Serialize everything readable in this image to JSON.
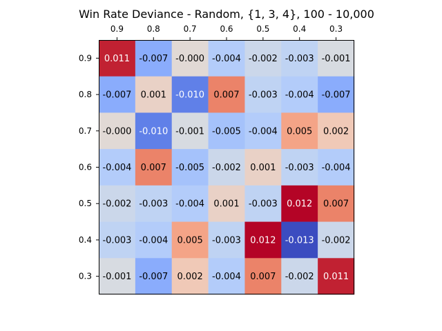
{
  "chart_data": {
    "type": "heatmap",
    "title": "Win Rate Deviance - Random, {1, 3, 4}, 100 - 10,000",
    "x_categories": [
      "0.9",
      "0.8",
      "0.7",
      "0.6",
      "0.5",
      "0.4",
      "0.3"
    ],
    "y_categories": [
      "0.9",
      "0.8",
      "0.7",
      "0.6",
      "0.5",
      "0.4",
      "0.3"
    ],
    "x_axis_position": "top",
    "colormap": "coolwarm",
    "color_range": [
      -0.013,
      0.012
    ],
    "grid": false,
    "legend": "none",
    "values": [
      [
        0.011,
        -0.007,
        -0.0,
        -0.004,
        -0.002,
        -0.003,
        -0.001
      ],
      [
        -0.007,
        0.001,
        -0.01,
        0.007,
        -0.003,
        -0.004,
        -0.007
      ],
      [
        -0.0,
        -0.01,
        -0.001,
        -0.005,
        -0.004,
        0.005,
        0.002
      ],
      [
        -0.004,
        0.007,
        -0.005,
        -0.002,
        0.001,
        -0.003,
        -0.004
      ],
      [
        -0.002,
        -0.003,
        -0.004,
        0.001,
        -0.003,
        0.012,
        0.007
      ],
      [
        -0.003,
        -0.004,
        0.005,
        -0.003,
        0.012,
        -0.013,
        -0.002
      ],
      [
        -0.001,
        -0.007,
        0.002,
        -0.004,
        0.007,
        -0.002,
        0.011
      ]
    ],
    "labels": [
      [
        "0.011",
        "-0.007",
        "-0.000",
        "-0.004",
        "-0.002",
        "-0.003",
        "-0.001"
      ],
      [
        "-0.007",
        "0.001",
        "-0.010",
        "0.007",
        "-0.003",
        "-0.004",
        "-0.007"
      ],
      [
        "-0.000",
        "-0.010",
        "-0.001",
        "-0.005",
        "-0.004",
        "0.005",
        "0.002"
      ],
      [
        "-0.004",
        "0.007",
        "-0.005",
        "-0.002",
        "0.001",
        "-0.003",
        "-0.004"
      ],
      [
        "-0.002",
        "-0.003",
        "-0.004",
        "0.001",
        "-0.003",
        "0.012",
        "0.007"
      ],
      [
        "-0.003",
        "-0.004",
        "0.005",
        "-0.003",
        "0.012",
        "-0.013",
        "-0.002"
      ],
      [
        "-0.001",
        "-0.007",
        "0.002",
        "-0.004",
        "0.007",
        "-0.002",
        "0.011"
      ]
    ]
  }
}
